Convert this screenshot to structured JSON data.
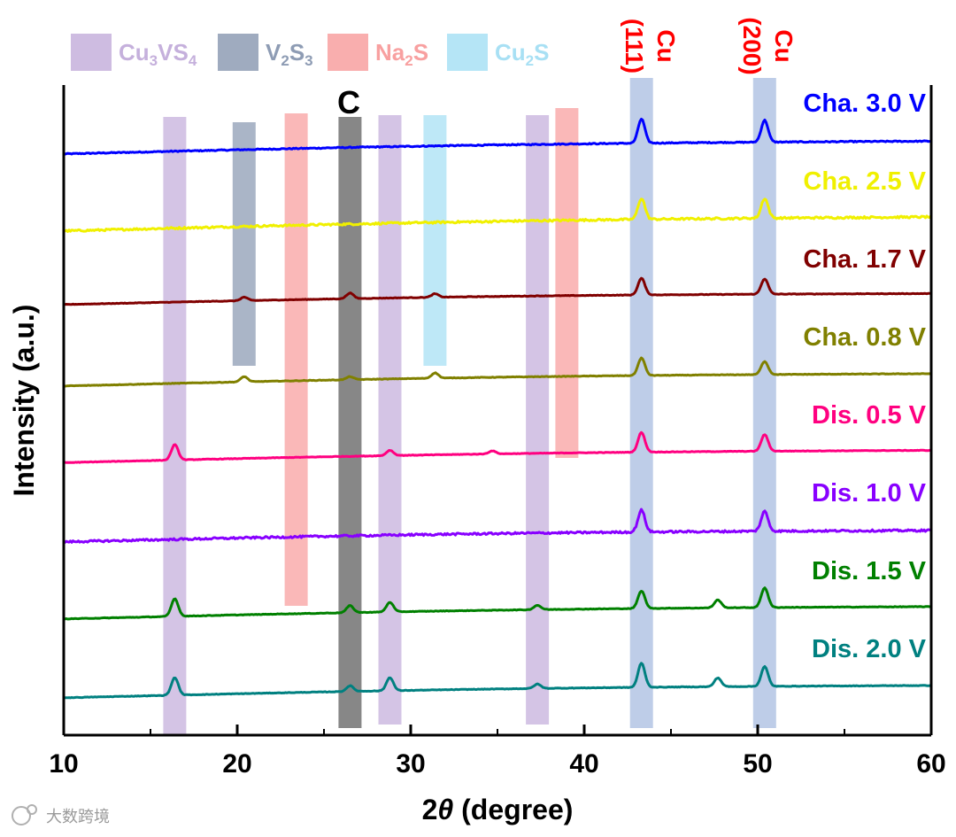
{
  "chart_data": {
    "type": "line",
    "xlabel_prefix": "2",
    "xlabel_theta": "θ",
    "xlabel_suffix": " (degree)",
    "ylabel": "Intensity (a.u.)",
    "xlim": [
      10,
      60
    ],
    "xticks": [
      10,
      20,
      30,
      40,
      50,
      60
    ],
    "legend": [
      {
        "name": "Cu3VS4",
        "base": "Cu",
        "sub1": "3",
        "mid": "VS",
        "sub2": "4",
        "color": "#c5b0dc"
      },
      {
        "name": "V2S3",
        "base": "V",
        "sub1": "2",
        "mid": "S",
        "sub2": "3",
        "color": "#8e9cb4"
      },
      {
        "name": "Na2S",
        "base": "Na",
        "sub1": "2",
        "mid": "S",
        "sub2": "",
        "color": "#f8a0a0"
      },
      {
        "name": "Cu2S",
        "base": "Cu",
        "sub1": "2",
        "mid": "S",
        "sub2": "",
        "color": "#a8e0f4"
      }
    ],
    "phase_bands": [
      {
        "phase": "Cu3VS4",
        "x": 16.4,
        "color": "#c5b0dc"
      },
      {
        "phase": "V2S3",
        "x": 20.4,
        "color": "#8e9cb4"
      },
      {
        "phase": "Na2S",
        "x": 23.4,
        "color": "#f8a0a0"
      },
      {
        "phase": "C",
        "x": 26.5,
        "color": "#7a7a7a"
      },
      {
        "phase": "Cu3VS4",
        "x": 28.8,
        "color": "#c5b0dc"
      },
      {
        "phase": "Cu2S",
        "x": 31.4,
        "color": "#a8e0f4"
      },
      {
        "phase": "Cu3VS4",
        "x": 37.3,
        "color": "#c5b0dc"
      },
      {
        "phase": "Na2S",
        "x": 39.0,
        "color": "#f8a0a0"
      },
      {
        "phase": "Cu(111)",
        "x": 43.3,
        "color": "#a8bce0"
      },
      {
        "phase": "Cu(200)",
        "x": 50.4,
        "color": "#a8bce0"
      }
    ],
    "annotations": {
      "carbon": "C",
      "cu111_element": "Cu",
      "cu111_plane": "(111)",
      "cu200_element": "Cu",
      "cu200_plane": "(200)"
    },
    "series": [
      {
        "name": "Cha. 3.0 V",
        "color": "#0000ff",
        "start": 0.56,
        "end": 0.85,
        "noise": 0.012,
        "peaks": [
          [
            43.3,
            0.55
          ],
          [
            50.4,
            0.5
          ]
        ]
      },
      {
        "name": "Cha. 2.5 V",
        "color": "#f0f000",
        "start": 0.58,
        "end": 0.9,
        "noise": 0.022,
        "peaks": [
          [
            43.3,
            0.48
          ],
          [
            50.4,
            0.45
          ]
        ]
      },
      {
        "name": "Cha. 1.7 V",
        "color": "#800000",
        "start": 0.68,
        "end": 0.93,
        "noise": 0.006,
        "peaks": [
          [
            20.4,
            0.08
          ],
          [
            26.5,
            0.13
          ],
          [
            31.4,
            0.08
          ],
          [
            43.3,
            0.38
          ],
          [
            50.4,
            0.35
          ]
        ]
      },
      {
        "name": "Cha. 0.8 V",
        "color": "#808000",
        "start": 0.6,
        "end": 0.88,
        "noise": 0.006,
        "peaks": [
          [
            20.4,
            0.12
          ],
          [
            26.5,
            0.07
          ],
          [
            31.4,
            0.12
          ],
          [
            43.3,
            0.4
          ],
          [
            50.4,
            0.3
          ]
        ]
      },
      {
        "name": "Dis. 0.5 V",
        "color": "#ff0080",
        "start": 0.63,
        "end": 0.91,
        "noise": 0.006,
        "peaks": [
          [
            16.4,
            0.35
          ],
          [
            28.8,
            0.12
          ],
          [
            34.7,
            0.07
          ],
          [
            43.3,
            0.45
          ],
          [
            50.4,
            0.38
          ]
        ]
      },
      {
        "name": "Dis. 1.0 V",
        "color": "#8800ff",
        "start": 0.6,
        "end": 0.86,
        "noise": 0.022,
        "peaks": [
          [
            43.3,
            0.5
          ],
          [
            50.4,
            0.45
          ]
        ]
      },
      {
        "name": "Dis. 1.5 V",
        "color": "#008000",
        "start": 0.62,
        "end": 0.9,
        "noise": 0.006,
        "peaks": [
          [
            16.4,
            0.4
          ],
          [
            26.5,
            0.16
          ],
          [
            28.8,
            0.22
          ],
          [
            37.3,
            0.1
          ],
          [
            43.3,
            0.4
          ],
          [
            47.7,
            0.18
          ],
          [
            50.4,
            0.45
          ]
        ]
      },
      {
        "name": "Dis. 2.0 V",
        "color": "#008080",
        "start": 0.6,
        "end": 0.88,
        "noise": 0.006,
        "peaks": [
          [
            16.4,
            0.4
          ],
          [
            26.5,
            0.13
          ],
          [
            28.8,
            0.3
          ],
          [
            37.3,
            0.1
          ],
          [
            43.3,
            0.55
          ],
          [
            47.7,
            0.2
          ],
          [
            50.4,
            0.45
          ]
        ]
      }
    ]
  },
  "watermark": "大数跨境"
}
